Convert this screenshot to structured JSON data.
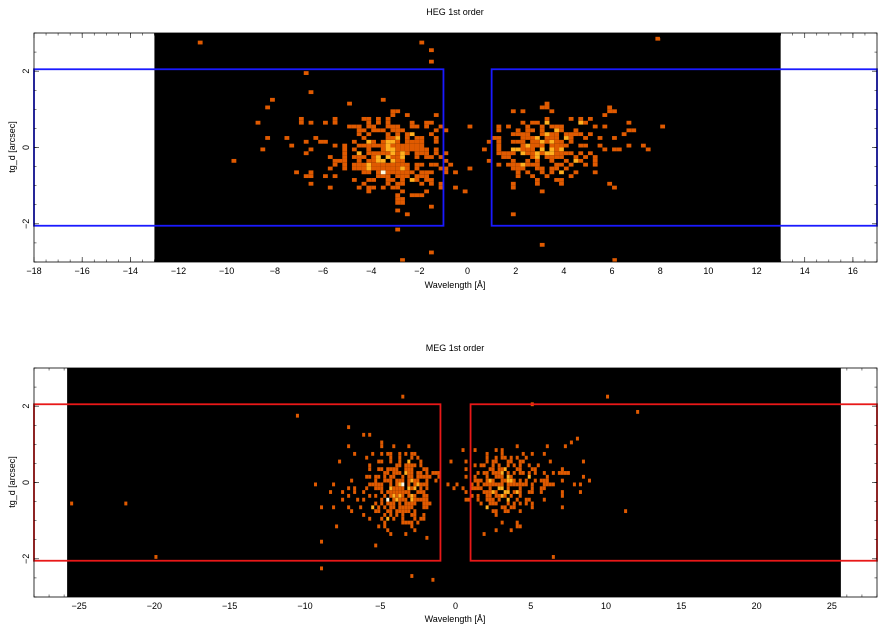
{
  "chart_data": [
    {
      "type": "heatmap",
      "title": "HEG 1st order",
      "xlabel": "Wavelength [Å]",
      "ylabel": "tg_d [arcsec]",
      "xlim": [
        -18,
        17
      ],
      "ylim": [
        -3,
        3
      ],
      "data_x_range": [
        -13,
        13
      ],
      "x_ticks": [
        -18,
        -16,
        -14,
        -12,
        -10,
        -8,
        -6,
        -4,
        -2,
        0,
        2,
        4,
        6,
        8,
        10,
        12,
        14,
        16
      ],
      "x_tick_labels": [
        "−18",
        "−16",
        "−14",
        "−12",
        "−10",
        "−8",
        "−6",
        "−4",
        "−2",
        "0",
        "2",
        "4",
        "6",
        "8",
        "10",
        "12",
        "14",
        "16"
      ],
      "y_ticks": [
        -2,
        0,
        2
      ],
      "y_tick_labels": [
        "−2",
        "0",
        "2"
      ],
      "colors": {
        "background": "#000000",
        "region": "#1a1aff",
        "hot": "#fffbe0",
        "mid": "#ffb020",
        "cool": "#e05a00"
      },
      "clusters": [
        {
          "x": -3.0,
          "y": -0.2,
          "sx": 1.0,
          "sy": 0.5,
          "n": 340
        },
        {
          "x": 3.0,
          "y": 0.0,
          "sx": 1.0,
          "sy": 0.45,
          "n": 240
        },
        {
          "x": -6.0,
          "y": 0.0,
          "sx": 1.3,
          "sy": 0.7,
          "n": 45
        },
        {
          "x": 5.5,
          "y": 0.2,
          "sx": 1.2,
          "sy": 0.6,
          "n": 40
        }
      ],
      "outliers": [
        [
          -11.2,
          2.8
        ],
        [
          -2.0,
          2.8
        ],
        [
          -1.5,
          2.5
        ],
        [
          -1.5,
          2.2
        ],
        [
          -1.5,
          -2.8
        ],
        [
          -2.8,
          -3.0
        ],
        [
          -3.0,
          -2.2
        ],
        [
          -9.8,
          -0.4
        ],
        [
          7.9,
          2.9
        ],
        [
          8.0,
          0.5
        ],
        [
          3.0,
          -2.6
        ],
        [
          6.1,
          -3.0
        ],
        [
          1.8,
          -1.8
        ]
      ],
      "regions": [
        {
          "x": [
            -100,
            -1
          ],
          "y": [
            -2.05,
            2.05
          ]
        },
        {
          "x": [
            1,
            100
          ],
          "y": [
            -2.05,
            2.05
          ]
        }
      ],
      "grid": false
    },
    {
      "type": "heatmap",
      "title": "MEG 1st order",
      "xlabel": "Wavelength [Å]",
      "ylabel": "tg_d [arcsec]",
      "xlim": [
        -28,
        28
      ],
      "ylim": [
        -3,
        3
      ],
      "data_x_range": [
        -25.8,
        25.6
      ],
      "x_ticks": [
        -25,
        -20,
        -15,
        -10,
        -5,
        0,
        5,
        10,
        15,
        20,
        25
      ],
      "x_tick_labels": [
        "−25",
        "−20",
        "−15",
        "−10",
        "−5",
        "0",
        "5",
        "10",
        "15",
        "20",
        "25"
      ],
      "y_ticks": [
        -2,
        0,
        2
      ],
      "y_tick_labels": [
        "−2",
        "0",
        "2"
      ],
      "colors": {
        "background": "#000000",
        "region": "#e81818",
        "hot": "#fffbe0",
        "mid": "#ffb020",
        "cool": "#e05a00"
      },
      "clusters": [
        {
          "x": -3.5,
          "y": -0.2,
          "sx": 1.0,
          "sy": 0.5,
          "n": 300
        },
        {
          "x": 3.0,
          "y": -0.1,
          "sx": 1.2,
          "sy": 0.45,
          "n": 240
        },
        {
          "x": -6.5,
          "y": 0.0,
          "sx": 1.5,
          "sy": 0.6,
          "n": 40
        },
        {
          "x": 6.5,
          "y": 0.1,
          "sx": 1.2,
          "sy": 0.5,
          "n": 40
        }
      ],
      "outliers": [
        [
          -25.5,
          -0.6
        ],
        [
          -22.0,
          -0.6
        ],
        [
          -20.0,
          -2.0
        ],
        [
          -9.0,
          -1.6
        ],
        [
          -9.0,
          -2.3
        ],
        [
          -3.5,
          2.2
        ],
        [
          -3.0,
          -2.5
        ],
        [
          -1.5,
          -2.6
        ],
        [
          6.5,
          -2.0
        ],
        [
          10.0,
          2.3
        ],
        [
          12.0,
          1.9
        ],
        [
          11.3,
          -0.8
        ],
        [
          5.0,
          2.0
        ]
      ],
      "regions": [
        {
          "x": [
            -100,
            -1
          ],
          "y": [
            -2.05,
            2.05
          ]
        },
        {
          "x": [
            1,
            100
          ],
          "y": [
            -2.05,
            2.05
          ]
        }
      ],
      "grid": false
    }
  ]
}
